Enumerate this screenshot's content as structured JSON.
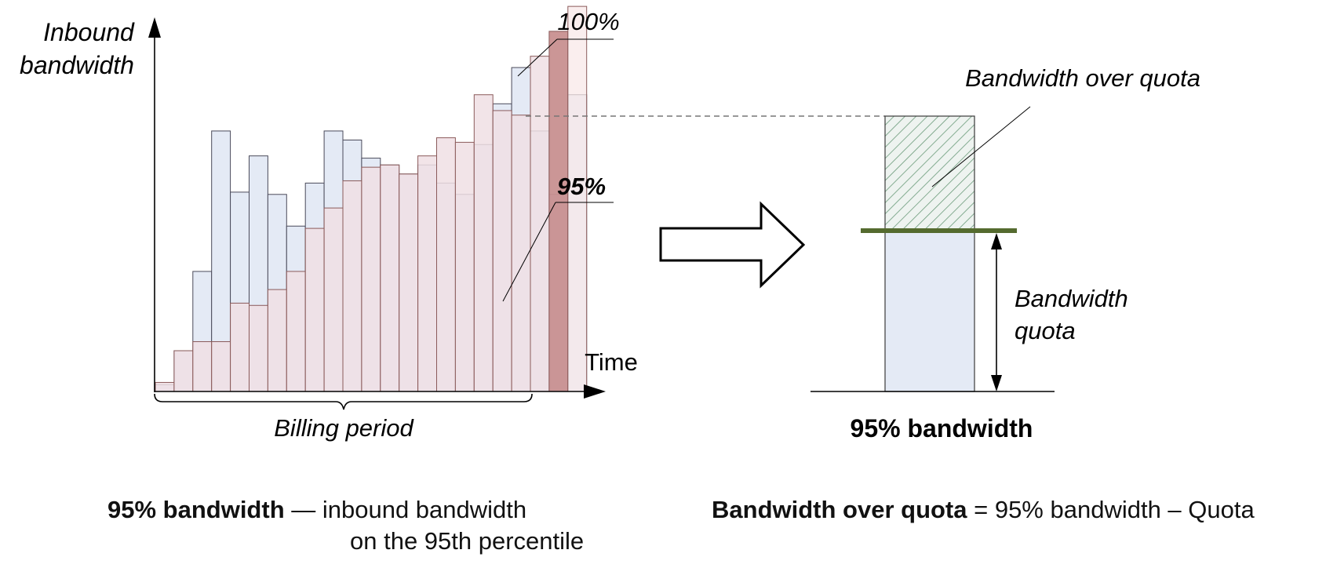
{
  "chart": {
    "y_axis_label_line1": "Inbound",
    "y_axis_label_line2": "bandwidth",
    "x_axis_label": "Time",
    "period_label": "Billing period",
    "marker_100": "100%",
    "marker_95": "95%",
    "colors": {
      "blue_fill": "#e4eaf5",
      "blue_stroke": "#4a4a5a",
      "pink_fill": "#f0dfe4",
      "pink_stroke": "#8a5a5a",
      "highlight_fill": "#c89090",
      "light_fill": "#f8e8e8"
    },
    "bars": [
      {
        "blue": 3,
        "pink": 4
      },
      {
        "blue": 18,
        "pink": 18
      },
      {
        "blue": 53,
        "pink": 22
      },
      {
        "blue": 115,
        "pink": 22
      },
      {
        "blue": 88,
        "pink": 39
      },
      {
        "blue": 104,
        "pink": 38
      },
      {
        "blue": 87,
        "pink": 45
      },
      {
        "blue": 73,
        "pink": 53
      },
      {
        "blue": 92,
        "pink": 72
      },
      {
        "blue": 115,
        "pink": 81
      },
      {
        "blue": 111,
        "pink": 93
      },
      {
        "blue": 103,
        "pink": 99
      },
      {
        "blue": 100,
        "pink": 100
      },
      {
        "blue": 96,
        "pink": 96
      },
      {
        "blue": 100,
        "pink": 104
      },
      {
        "blue": 92,
        "pink": 112
      },
      {
        "blue": 87,
        "pink": 110
      },
      {
        "blue": 109,
        "pink": 131
      },
      {
        "blue": 127,
        "pink": 124
      },
      {
        "blue": 143,
        "pink": 122
      },
      {
        "blue": 115,
        "pink": 148
      },
      {
        "blue": 87,
        "pink": 159
      },
      {
        "blue": 131,
        "pink": 170
      }
    ]
  },
  "quota_panel": {
    "title": "95% bandwidth",
    "over_quota_label": "Bandwidth over quota",
    "quota_label_line1": "Bandwidth",
    "quota_label_line2": "quota",
    "colors": {
      "hatch": "#6a9a7a",
      "quota_line": "#556b2f",
      "quota_fill": "#e4eaf5"
    }
  },
  "definitions": {
    "left_bold": "95% bandwidth",
    "left_text_line1": " — inbound bandwidth",
    "left_text_line2": "on the 95th percentile",
    "right_bold": "Bandwidth over quota",
    "right_text": " = 95% bandwidth – Quota"
  }
}
